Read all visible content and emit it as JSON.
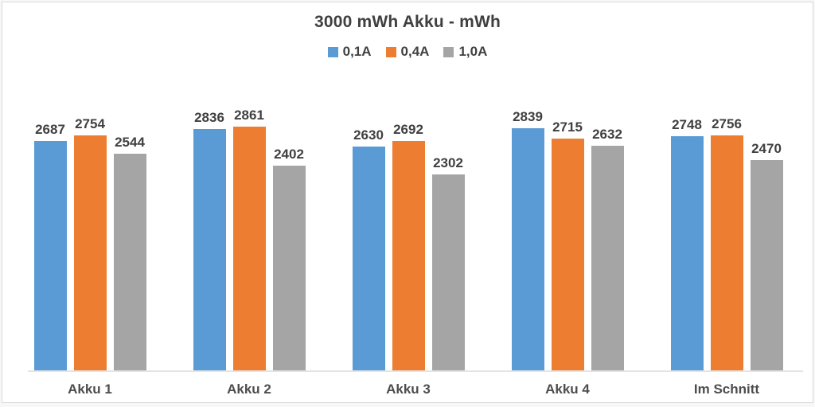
{
  "chart_data": {
    "type": "bar",
    "title": "3000 mWh Akku - mWh",
    "categories": [
      "Akku 1",
      "Akku 2",
      "Akku 3",
      "Akku 4",
      "Im Schnitt"
    ],
    "series": [
      {
        "name": "0,1A",
        "color": "#5B9BD5",
        "values": [
          2687,
          2836,
          2630,
          2839,
          2748
        ]
      },
      {
        "name": "0,4A",
        "color": "#ED7D31",
        "values": [
          2754,
          2861,
          2692,
          2715,
          2756
        ]
      },
      {
        "name": "1,0A",
        "color": "#A5A5A5",
        "values": [
          2544,
          2402,
          2302,
          2632,
          2470
        ]
      }
    ],
    "xlabel": "",
    "ylabel": "",
    "ylim": [
      0,
      3000
    ],
    "grid": false,
    "data_labels": true,
    "legend_position": "top",
    "text_color": "#404040",
    "axis_line_color": "#e4e4e4",
    "frame_border_color": "#d9d9d9"
  }
}
